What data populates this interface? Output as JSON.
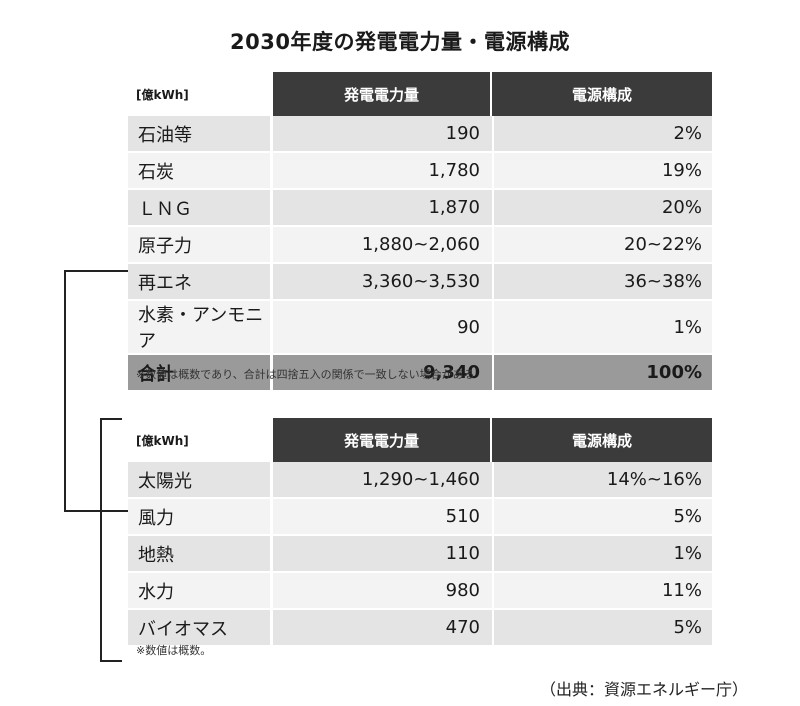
{
  "title": "2030年度の発電電力量・電源構成",
  "table1": {
    "unit": "[億kWh]",
    "col_generation": "発電電力量",
    "col_share": "電源構成",
    "rows": [
      {
        "name": "石油等",
        "generation": "190",
        "share": "2%"
      },
      {
        "name": "石炭",
        "generation": "1,780",
        "share": "19%"
      },
      {
        "name": "ＬＮＧ",
        "generation": "1,870",
        "share": "20%"
      },
      {
        "name": "原子力",
        "generation": "1,880~2,060",
        "share": "20~22%"
      },
      {
        "name": "再エネ",
        "generation": "3,360~3,530",
        "share": "36~38%"
      },
      {
        "name": "水素・アンモニア",
        "generation": "90",
        "share": "1%"
      }
    ],
    "total": {
      "name": "合計",
      "generation": "9,340",
      "share": "100%"
    },
    "note": "※数値は概数であり、合計は四捨五入の関係で一致しない場合がある"
  },
  "table2": {
    "unit": "[億kWh]",
    "col_generation": "発電電力量",
    "col_share": "電源構成",
    "rows": [
      {
        "name": "太陽光",
        "generation": "1,290~1,460",
        "share": "14%~16%"
      },
      {
        "name": "風力",
        "generation": "510",
        "share": "5%"
      },
      {
        "name": "地熱",
        "generation": "110",
        "share": "1%"
      },
      {
        "name": "水力",
        "generation": "980",
        "share": "11%"
      },
      {
        "name": "バイオマス",
        "generation": "470",
        "share": "5%"
      }
    ],
    "note": "※数値は概数。"
  },
  "source": "（出典：資源エネルギー庁）"
}
